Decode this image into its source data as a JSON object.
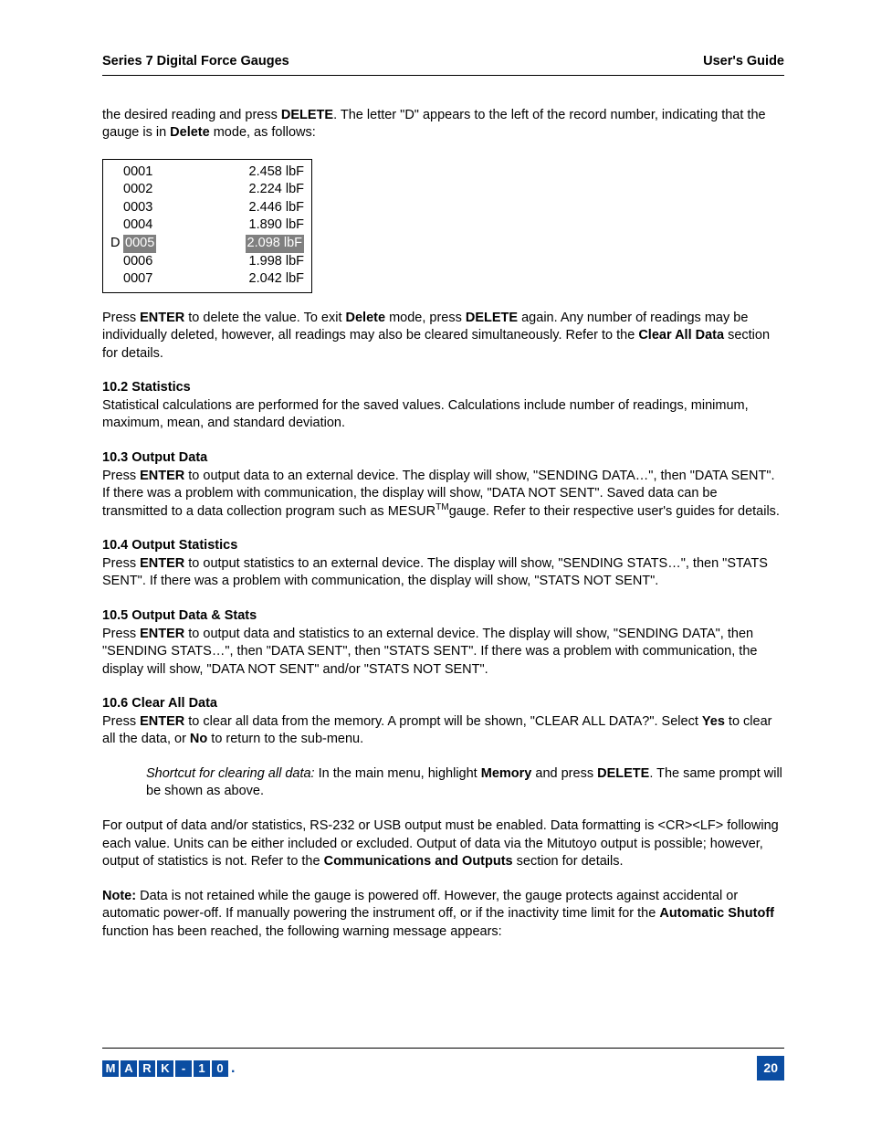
{
  "header": {
    "left": "Series 7 Digital Force Gauges",
    "right": "User's Guide"
  },
  "intro": {
    "pre": "the desired reading and press ",
    "k1": "DELETE",
    "mid1": ". The letter \"D\" appears to the left of the record number, indicating that the gauge is in ",
    "k2": "Delete",
    "post": " mode, as follows:"
  },
  "table": {
    "rows": [
      {
        "prefix": "",
        "num": "0001",
        "val": "2.458 lbF",
        "sel": false
      },
      {
        "prefix": "",
        "num": "0002",
        "val": "2.224 lbF",
        "sel": false
      },
      {
        "prefix": "",
        "num": "0003",
        "val": "2.446 lbF",
        "sel": false
      },
      {
        "prefix": "",
        "num": "0004",
        "val": "1.890 lbF",
        "sel": false
      },
      {
        "prefix": "D",
        "num": "0005",
        "val": "2.098 lbF",
        "sel": true
      },
      {
        "prefix": "",
        "num": "0006",
        "val": "1.998 lbF",
        "sel": false
      },
      {
        "prefix": "",
        "num": "0007",
        "val": "2.042 lbF",
        "sel": false
      }
    ]
  },
  "para_after_table": {
    "t1": "Press ",
    "k1": "ENTER",
    "t2": " to delete the value. To exit ",
    "k2": "Delete",
    "t3": " mode, press ",
    "k3": "DELETE",
    "t4": " again. Any number of readings may be individually deleted, however, all readings may also be cleared simultaneously. Refer to the ",
    "k4": "Clear All Data",
    "t5": " section for details."
  },
  "s102": {
    "head": "10.2 Statistics",
    "body": "Statistical calculations are performed for the saved values. Calculations include number of readings, minimum, maximum, mean, and standard deviation."
  },
  "s103": {
    "head": "10.3 Output Data",
    "t1": "Press ",
    "k1": "ENTER",
    "t2": " to output data to an external device. The display will show, \"SENDING DATA…\", then \"DATA SENT\". If there was a problem with communication, the display will show, \"DATA NOT SENT\". Saved data can be transmitted to a data collection program such as MESUR",
    "sup": "TM",
    "t3": "gauge. Refer to their respective user's guides for details."
  },
  "s104": {
    "head": "10.4 Output Statistics",
    "t1": "Press ",
    "k1": "ENTER",
    "t2": " to output statistics to an external device. The display will show, \"SENDING STATS…\", then \"STATS SENT\". If there was a problem with communication, the display will show, \"STATS NOT SENT\"."
  },
  "s105": {
    "head": "10.5 Output Data & Stats",
    "t1": "Press ",
    "k1": "ENTER",
    "t2": " to output data and statistics to an external device. The display will show, \"SENDING DATA\", then \"SENDING STATS…\", then \"DATA SENT\", then \"STATS SENT\". If there was a problem with communication, the display will show, \"DATA NOT SENT\" and/or \"STATS NOT SENT\"."
  },
  "s106": {
    "head": "10.6 Clear All Data",
    "t1": "Press ",
    "k1": "ENTER",
    "t2": " to clear all data from the memory. A prompt will be shown, \"CLEAR ALL DATA?\". Select ",
    "k2": "Yes",
    "t3": " to clear all the data, or ",
    "k3": "No",
    "t4": " to return to the sub-menu."
  },
  "shortcut": {
    "i1": "Shortcut for clearing all data:",
    "t1": " In the main menu, highlight ",
    "k1": "Memory",
    "t2": " and press ",
    "k2": "DELETE",
    "t3": ". The same prompt will be shown as above."
  },
  "para_output": {
    "t1": "For output of data and/or statistics, RS-232 or USB output must be enabled. Data formatting is <CR><LF> following each value. Units can be either included or excluded. Output of data via the Mitutoyo output is possible; however, output of statistics is not. Refer to the ",
    "k1": "Communications and Outputs",
    "t2": " section for details."
  },
  "note": {
    "k0": "Note:",
    "t1": " Data is not retained while the gauge is powered off. However, the gauge protects against accidental or automatic power-off. If manually powering the instrument off, or if the inactivity time limit for the ",
    "k1": "Automatic Shutoff",
    "t2": " function has been reached, the following warning message appears:"
  },
  "footer": {
    "logo": [
      "M",
      "A",
      "R",
      "K",
      "-",
      "1",
      "0"
    ],
    "page": "20"
  }
}
